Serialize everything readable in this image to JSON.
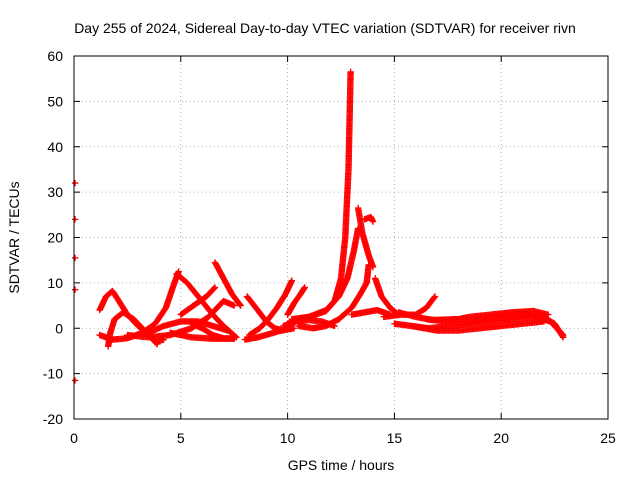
{
  "chart_data": {
    "type": "scatter",
    "title": "Day 255 of 2024, Sidereal Day-to-day VTEC variation (SDTVAR) for receiver rivn",
    "xlabel": "GPS time / hours",
    "ylabel": "SDTVAR / TECUs",
    "xlim": [
      0,
      25
    ],
    "ylim": [
      -20,
      60
    ],
    "xticks": [
      0,
      5,
      10,
      15,
      20,
      25
    ],
    "yticks": [
      -20,
      -10,
      0,
      10,
      20,
      30,
      40,
      50,
      60
    ],
    "grid": true,
    "marker": "+",
    "color": "#ff0000",
    "tracks": [
      {
        "name": "isolated-points",
        "points": [
          [
            0.05,
            32
          ],
          [
            0.05,
            24
          ],
          [
            0.05,
            15.5
          ],
          [
            0.05,
            8.5
          ],
          [
            0.05,
            -11.5
          ]
        ]
      },
      {
        "name": "arc-01",
        "points": [
          [
            1.2,
            4
          ],
          [
            1.5,
            7
          ],
          [
            1.8,
            8.2
          ],
          [
            2.1,
            6
          ],
          [
            2.5,
            3
          ],
          [
            3.0,
            0.5
          ],
          [
            3.5,
            -1.5
          ],
          [
            3.9,
            -3.5
          ]
        ]
      },
      {
        "name": "arc-02",
        "points": [
          [
            1.2,
            -1.5
          ],
          [
            1.8,
            -2.5
          ],
          [
            2.5,
            -2.2
          ],
          [
            3.2,
            -1
          ],
          [
            3.8,
            1
          ],
          [
            4.3,
            4.5
          ],
          [
            4.7,
            10
          ],
          [
            4.9,
            12.5
          ]
        ]
      },
      {
        "name": "arc-03",
        "points": [
          [
            1.6,
            -4
          ],
          [
            1.7,
            -1
          ],
          [
            1.9,
            2
          ],
          [
            2.3,
            3.5
          ],
          [
            2.8,
            2
          ],
          [
            3.2,
            0
          ],
          [
            3.8,
            -3
          ],
          [
            4.2,
            -2.5
          ]
        ]
      },
      {
        "name": "arc-04",
        "points": [
          [
            2.5,
            -1.5
          ],
          [
            3.5,
            -2
          ],
          [
            4.5,
            -1.5
          ],
          [
            5.5,
            0
          ],
          [
            6.3,
            2.5
          ],
          [
            7.0,
            6
          ],
          [
            7.5,
            5
          ]
        ]
      },
      {
        "name": "arc-05",
        "points": [
          [
            4.8,
            12
          ],
          [
            5.3,
            10
          ],
          [
            5.9,
            6.5
          ],
          [
            6.5,
            3
          ],
          [
            7.0,
            0.5
          ],
          [
            7.6,
            -2
          ]
        ]
      },
      {
        "name": "arc-06",
        "points": [
          [
            3.5,
            -1
          ],
          [
            4.2,
            0.5
          ],
          [
            5.0,
            1.5
          ],
          [
            5.8,
            1.5
          ],
          [
            6.5,
            0.5
          ],
          [
            7.2,
            -0.5
          ]
        ]
      },
      {
        "name": "arc-07",
        "points": [
          [
            5.5,
            1
          ],
          [
            6.0,
            0
          ],
          [
            6.5,
            -1.5
          ],
          [
            7.0,
            -2.2
          ],
          [
            7.5,
            -2.3
          ]
        ]
      },
      {
        "name": "arc-08",
        "points": [
          [
            5.0,
            3
          ],
          [
            5.6,
            5
          ],
          [
            6.2,
            7
          ],
          [
            6.6,
            9
          ]
        ]
      },
      {
        "name": "arc-09",
        "points": [
          [
            6.6,
            14.5
          ],
          [
            7.0,
            11
          ],
          [
            7.4,
            7.5
          ],
          [
            7.8,
            5
          ]
        ]
      },
      {
        "name": "arc-10",
        "points": [
          [
            4.5,
            -1
          ],
          [
            5.5,
            -2
          ],
          [
            6.5,
            -2.3
          ],
          [
            7.5,
            -2.3
          ]
        ]
      },
      {
        "name": "arc-11",
        "points": [
          [
            8.0,
            -2.5
          ],
          [
            8.6,
            -2
          ],
          [
            9.2,
            -1.2
          ],
          [
            9.7,
            -0.5
          ],
          [
            10.3,
            0
          ]
        ]
      },
      {
        "name": "arc-12",
        "points": [
          [
            8.1,
            7
          ],
          [
            8.6,
            4
          ],
          [
            9.0,
            1.5
          ],
          [
            9.4,
            0
          ],
          [
            9.8,
            -0.5
          ]
        ]
      },
      {
        "name": "arc-13",
        "points": [
          [
            8.2,
            -1.5
          ],
          [
            8.7,
            0
          ],
          [
            9.1,
            2
          ],
          [
            9.5,
            4.5
          ],
          [
            9.9,
            7.5
          ],
          [
            10.2,
            10.5
          ]
        ]
      },
      {
        "name": "arc-14",
        "points": [
          [
            9.8,
            0.5
          ],
          [
            10.4,
            1.5
          ],
          [
            11.0,
            1.8
          ],
          [
            11.6,
            1.5
          ],
          [
            12.2,
            0.5
          ]
        ]
      },
      {
        "name": "arc-15",
        "points": [
          [
            10.0,
            3
          ],
          [
            10.3,
            5.5
          ],
          [
            10.6,
            7.5
          ],
          [
            10.8,
            9
          ]
        ]
      },
      {
        "name": "arc-16",
        "points": [
          [
            10.0,
            1
          ],
          [
            10.6,
            2
          ],
          [
            11.2,
            2.8
          ],
          [
            11.8,
            3.8
          ],
          [
            12.2,
            6
          ],
          [
            12.5,
            11
          ],
          [
            12.7,
            20
          ],
          [
            12.85,
            35
          ],
          [
            12.95,
            56.5
          ]
        ]
      },
      {
        "name": "arc-17",
        "points": [
          [
            10.2,
            2
          ],
          [
            11.0,
            2.5
          ],
          [
            11.8,
            4
          ],
          [
            12.4,
            7
          ],
          [
            12.8,
            11
          ],
          [
            13.1,
            17
          ],
          [
            13.3,
            22
          ]
        ]
      },
      {
        "name": "arc-18",
        "points": [
          [
            10.5,
            0.5
          ],
          [
            11.2,
            0
          ],
          [
            11.8,
            0.5
          ],
          [
            12.4,
            2
          ],
          [
            13.0,
            4.5
          ],
          [
            13.4,
            7.5
          ],
          [
            13.7,
            10
          ],
          [
            13.8,
            14
          ]
        ]
      },
      {
        "name": "arc-19",
        "points": [
          [
            13.3,
            26.5
          ],
          [
            13.5,
            21
          ],
          [
            13.8,
            16
          ],
          [
            14.0,
            13.5
          ]
        ]
      },
      {
        "name": "arc-20",
        "points": [
          [
            13.6,
            24
          ],
          [
            13.9,
            24.5
          ],
          [
            14.0,
            23.5
          ]
        ]
      },
      {
        "name": "arc-21",
        "points": [
          [
            14.1,
            11
          ],
          [
            14.4,
            7
          ],
          [
            14.8,
            4.5
          ],
          [
            15.2,
            3
          ]
        ]
      },
      {
        "name": "arc-22",
        "points": [
          [
            13.0,
            3
          ],
          [
            13.6,
            3.5
          ],
          [
            14.2,
            4
          ],
          [
            14.8,
            3
          ]
        ]
      },
      {
        "name": "arc-23",
        "points": [
          [
            15.0,
            1
          ],
          [
            15.8,
            0.5
          ],
          [
            16.6,
            0
          ],
          [
            17.5,
            0.5
          ],
          [
            18.5,
            1
          ],
          [
            19.5,
            1.5
          ],
          [
            20.5,
            2
          ],
          [
            21.5,
            2.5
          ],
          [
            22.3,
            1.5
          ],
          [
            22.9,
            -1.5
          ]
        ]
      },
      {
        "name": "arc-24",
        "points": [
          [
            15.2,
            3.5
          ],
          [
            16.0,
            2.5
          ],
          [
            16.8,
            1.8
          ],
          [
            17.8,
            2
          ],
          [
            18.8,
            2
          ],
          [
            19.8,
            2.5
          ],
          [
            20.8,
            3
          ],
          [
            21.8,
            3
          ],
          [
            22.5,
            1
          ],
          [
            22.9,
            -2
          ]
        ]
      },
      {
        "name": "arc-25",
        "points": [
          [
            14.5,
            2.5
          ],
          [
            15.3,
            3
          ],
          [
            16.0,
            3
          ],
          [
            16.5,
            4.5
          ],
          [
            16.9,
            7
          ]
        ]
      },
      {
        "name": "arc-26",
        "points": [
          [
            15.8,
            0.5
          ],
          [
            17.0,
            -0.5
          ],
          [
            18.0,
            -0.5
          ],
          [
            19.0,
            0
          ],
          [
            20.0,
            0.5
          ],
          [
            21.0,
            1
          ],
          [
            22.0,
            1.5
          ]
        ]
      },
      {
        "name": "arc-27",
        "points": [
          [
            16.5,
            2
          ],
          [
            17.5,
            1.5
          ],
          [
            18.5,
            2.5
          ],
          [
            19.5,
            3
          ],
          [
            20.5,
            3.5
          ],
          [
            21.5,
            3.8
          ],
          [
            22.2,
            3
          ]
        ]
      }
    ]
  }
}
